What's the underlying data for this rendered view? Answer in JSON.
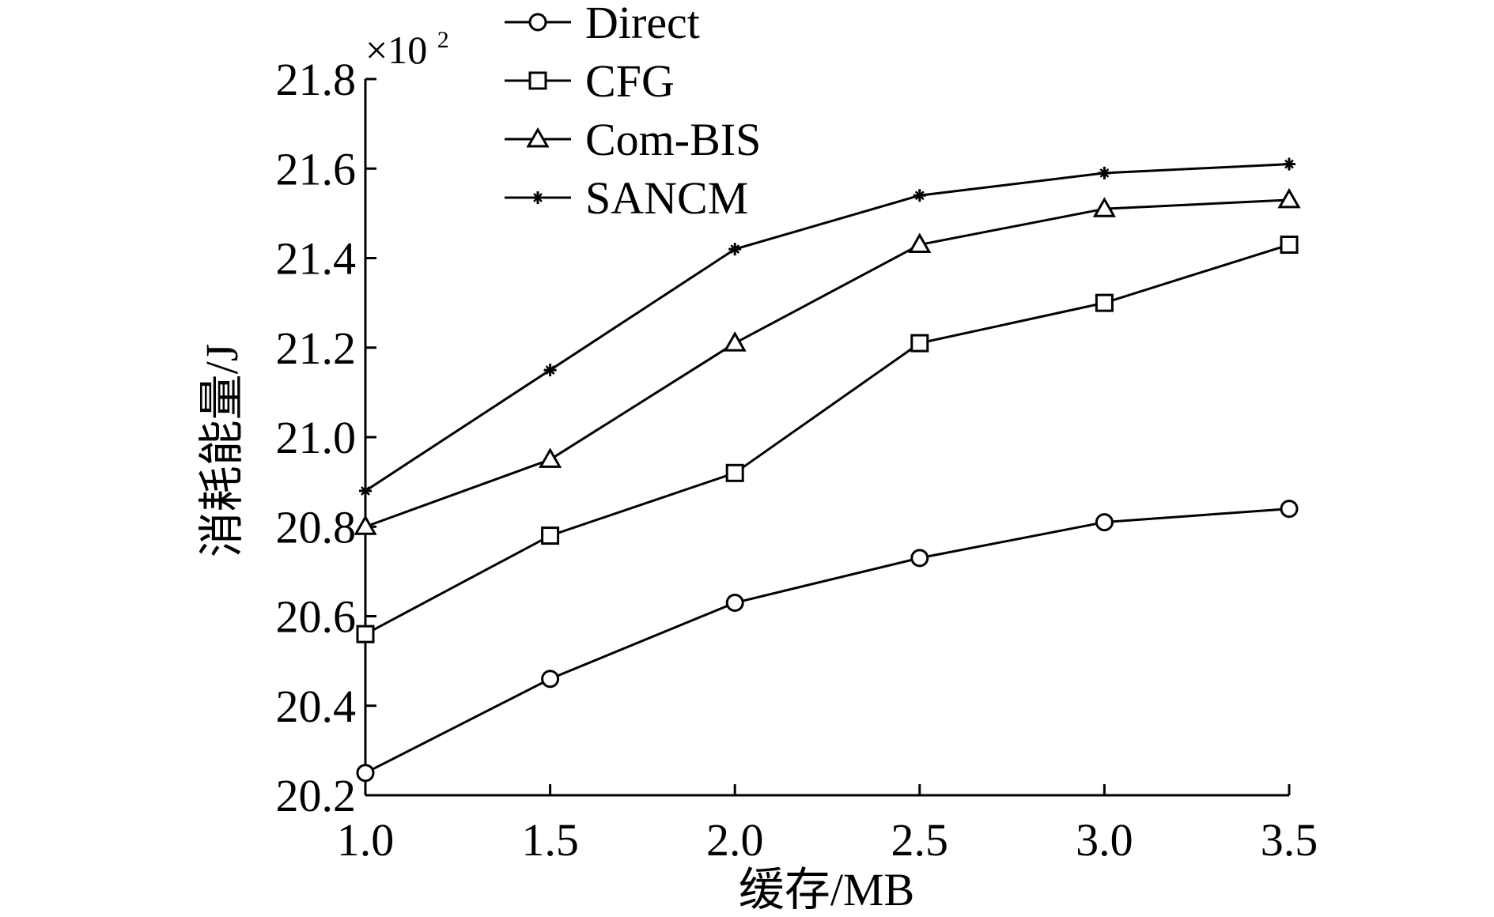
{
  "chart_data": {
    "type": "line",
    "xlabel": "缓存/MB",
    "ylabel": "消耗能量/J",
    "y_multiplier": {
      "base": "×10",
      "exponent": "2"
    },
    "x": [
      1.0,
      1.5,
      2.0,
      2.5,
      3.0,
      3.5
    ],
    "x_tick_labels": [
      "1.0",
      "1.5",
      "2.0",
      "2.5",
      "3.0",
      "3.5"
    ],
    "xlim": [
      1.0,
      3.5
    ],
    "y_ticks": [
      20.2,
      20.4,
      20.6,
      20.8,
      21.0,
      21.2,
      21.4,
      21.6,
      21.8
    ],
    "y_tick_labels": [
      "20.2",
      "20.4",
      "20.6",
      "20.8",
      "21.0",
      "21.2",
      "21.4",
      "21.6",
      "21.8"
    ],
    "ylim": [
      20.2,
      21.8
    ],
    "grid": false,
    "legend": "top-left",
    "series": [
      {
        "name": "Direct",
        "marker": "circle",
        "values": [
          20.25,
          20.46,
          20.63,
          20.73,
          20.81,
          20.84
        ]
      },
      {
        "name": "CFG",
        "marker": "square",
        "values": [
          20.56,
          20.78,
          20.92,
          21.21,
          21.3,
          21.43
        ]
      },
      {
        "name": "Com-BIS",
        "marker": "triangle",
        "values": [
          20.8,
          20.95,
          21.21,
          21.43,
          21.51,
          21.53
        ]
      },
      {
        "name": "SANCM",
        "marker": "star",
        "values": [
          20.88,
          21.15,
          21.42,
          21.54,
          21.59,
          21.61
        ]
      }
    ],
    "colors": {
      "line": "#000000",
      "background": "#ffffff"
    }
  }
}
